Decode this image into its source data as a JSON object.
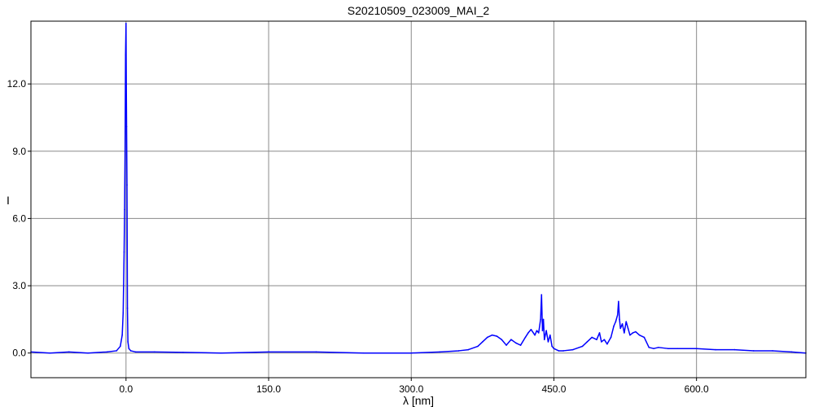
{
  "colors": {
    "background": "#ffffff",
    "grid": "#8a8a8a",
    "frame": "#000000",
    "series": "#0000ff",
    "text": "#000000"
  },
  "chart_data": {
    "type": "line",
    "title": "S20210509_023009_MAI_2",
    "xlabel": "λ [nm]",
    "ylabel": "I",
    "xlim": [
      -100,
      715
    ],
    "ylim": [
      -1.1,
      14.8
    ],
    "grid": true,
    "legend": "none",
    "x_ticks": [
      0,
      150,
      300,
      450,
      600
    ],
    "x_tick_labels": [
      "0.0",
      "150.0",
      "300.0",
      "450.0",
      "600.0"
    ],
    "y_ticks": [
      0,
      3,
      6,
      9,
      12
    ],
    "y_tick_labels": [
      "0.0",
      "3.0",
      "6.0",
      "9.0",
      "12.0"
    ],
    "series": [
      {
        "color": "#0000ff",
        "x": [
          -100,
          -80,
          -60,
          -40,
          -20,
          -10,
          -6,
          -4,
          -3,
          -2,
          -1.5,
          -1,
          -0.5,
          0,
          0.3,
          0.6,
          1,
          1.5,
          2,
          3,
          5,
          10,
          30,
          60,
          100,
          150,
          200,
          250,
          300,
          330,
          350,
          360,
          370,
          375,
          380,
          385,
          390,
          395,
          400,
          405,
          410,
          415,
          420,
          423,
          426,
          430,
          432,
          434,
          436,
          437,
          438,
          439,
          440,
          442,
          444,
          446,
          448,
          450,
          455,
          460,
          470,
          480,
          485,
          490,
          495,
          498,
          500,
          503,
          506,
          510,
          513,
          515,
          517,
          518,
          519,
          520,
          522,
          524,
          526,
          528,
          530,
          533,
          536,
          540,
          545,
          550,
          555,
          560,
          570,
          580,
          600,
          620,
          640,
          660,
          680,
          700,
          715
        ],
        "y": [
          0.05,
          0.0,
          0.05,
          0.0,
          0.05,
          0.1,
          0.3,
          0.8,
          1.8,
          4.5,
          6.4,
          9.0,
          13.3,
          14.7,
          12.0,
          10.1,
          7.5,
          2.0,
          0.5,
          0.2,
          0.1,
          0.05,
          0.05,
          0.03,
          0.0,
          0.05,
          0.05,
          0.0,
          0.0,
          0.05,
          0.1,
          0.15,
          0.3,
          0.5,
          0.7,
          0.8,
          0.75,
          0.6,
          0.35,
          0.6,
          0.45,
          0.35,
          0.7,
          0.9,
          1.05,
          0.8,
          1.0,
          0.9,
          1.5,
          2.6,
          1.0,
          1.5,
          0.6,
          1.0,
          0.5,
          0.8,
          0.3,
          0.2,
          0.1,
          0.1,
          0.15,
          0.3,
          0.5,
          0.7,
          0.6,
          0.9,
          0.5,
          0.6,
          0.4,
          0.7,
          1.2,
          1.4,
          1.7,
          2.3,
          1.5,
          1.1,
          1.3,
          0.9,
          1.4,
          1.1,
          0.8,
          0.9,
          0.95,
          0.8,
          0.7,
          0.25,
          0.2,
          0.25,
          0.2,
          0.2,
          0.2,
          0.15,
          0.15,
          0.1,
          0.1,
          0.05,
          0.0
        ]
      }
    ]
  }
}
